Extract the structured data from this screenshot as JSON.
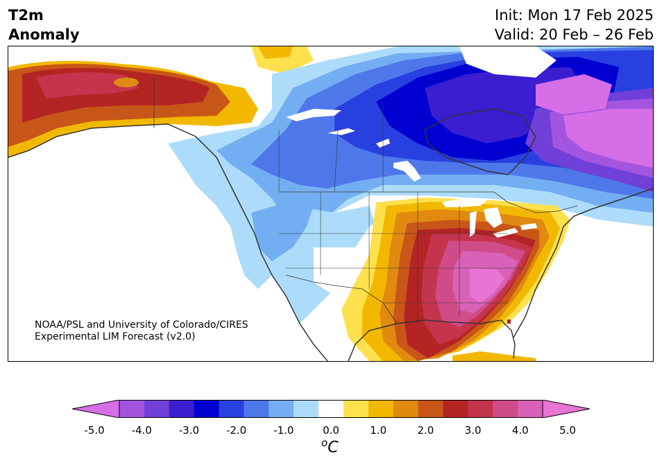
{
  "header": {
    "title_line1": "T2m",
    "title_line2": "Anomaly",
    "init_text": "Init: Mon 17 Feb 2025",
    "valid_text": "Valid: 20 Feb – 26 Feb"
  },
  "credit": {
    "line1": "NOAA/PSL and University of Colorado/CIRES",
    "line2": "Experimental LIM Forecast (v2.0)"
  },
  "legend": {
    "unit_main": "C",
    "unit_sup": "o",
    "levels": [
      -5.0,
      -4.5,
      -4.0,
      -3.5,
      -3.0,
      -2.5,
      -2.0,
      -1.5,
      -1.0,
      -0.5,
      0.5,
      1.0,
      1.5,
      2.0,
      2.5,
      3.0,
      3.5,
      4.0,
      4.5,
      5.0
    ],
    "tick_labels": [
      "-5.0",
      "-4.0",
      "-3.0",
      "-2.0",
      "-1.0",
      "0.0",
      "1.0",
      "2.0",
      "3.0",
      "4.0",
      "5.0"
    ],
    "colors": [
      "#d66ee8",
      "#a455e0",
      "#7040d8",
      "#3a1ed0",
      "#0000d0",
      "#2840e0",
      "#4e78ea",
      "#74aef2",
      "#acdcfa",
      "#ffffff",
      "#ffe14d",
      "#f2b800",
      "#e08a10",
      "#c85618",
      "#b42424",
      "#c4344c",
      "#d04c88",
      "#d862b8",
      "#e874d4"
    ]
  },
  "map": {
    "region": "North America",
    "features": [
      "Alaska warm anomaly",
      "Canada cold anomaly",
      "Hudson Bay cold core",
      "Western US cool",
      "Southeast US warm",
      "Gulf Coast warm"
    ]
  }
}
